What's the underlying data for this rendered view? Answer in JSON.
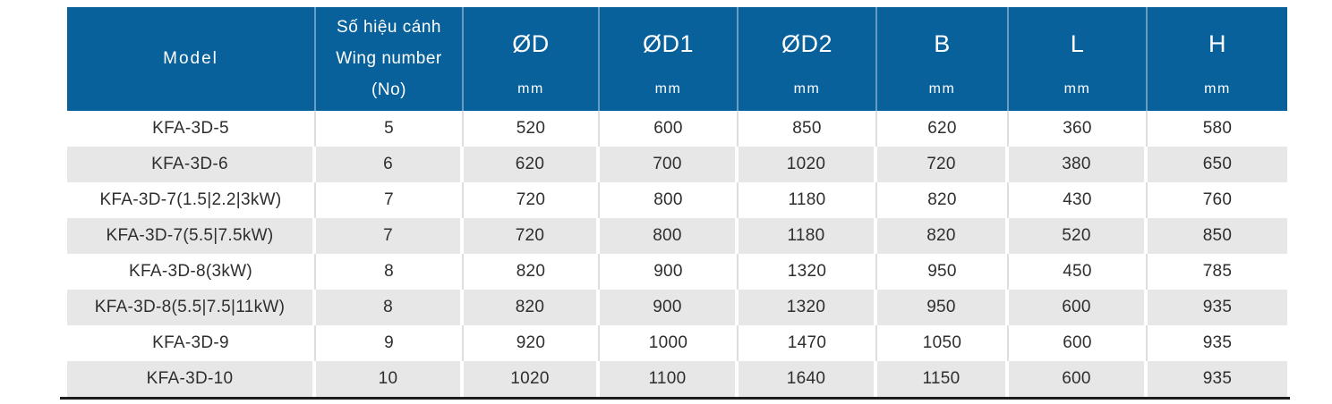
{
  "colors": {
    "header_bg": "#09619c",
    "row_alt_bg": "#e7e7e8",
    "white_row_divider": "#dedede",
    "bottom_rule": "#1d1d1b"
  },
  "table": {
    "header": {
      "model_label": "Model",
      "wing_lines": [
        "Số hiệu cánh",
        "Wing number",
        "(No)"
      ],
      "dim_columns": [
        {
          "label": "ØD",
          "unit": "mm"
        },
        {
          "label": "ØD1",
          "unit": "mm"
        },
        {
          "label": "ØD2",
          "unit": "mm"
        },
        {
          "label": "B",
          "unit": "mm"
        },
        {
          "label": "L",
          "unit": "mm"
        },
        {
          "label": "H",
          "unit": "mm"
        }
      ]
    },
    "rows": [
      {
        "model": "KFA-3D-5",
        "wing": "5",
        "values": [
          "520",
          "600",
          "850",
          "620",
          "360",
          "580"
        ]
      },
      {
        "model": "KFA-3D-6",
        "wing": "6",
        "values": [
          "620",
          "700",
          "1020",
          "720",
          "380",
          "650"
        ]
      },
      {
        "model": "KFA-3D-7(1.5|2.2|3kW)",
        "wing": "7",
        "values": [
          "720",
          "800",
          "1180",
          "820",
          "430",
          "760"
        ]
      },
      {
        "model": "KFA-3D-7(5.5|7.5kW)",
        "wing": "7",
        "values": [
          "720",
          "800",
          "1180",
          "820",
          "520",
          "850"
        ]
      },
      {
        "model": "KFA-3D-8(3kW)",
        "wing": "8",
        "values": [
          "820",
          "900",
          "1320",
          "950",
          "450",
          "785"
        ]
      },
      {
        "model": "KFA-3D-8(5.5|7.5|11kW)",
        "wing": "8",
        "values": [
          "820",
          "900",
          "1320",
          "950",
          "600",
          "935"
        ]
      },
      {
        "model": "KFA-3D-9",
        "wing": "9",
        "values": [
          "920",
          "1000",
          "1470",
          "1050",
          "600",
          "935"
        ]
      },
      {
        "model": "KFA-3D-10",
        "wing": "10",
        "values": [
          "1020",
          "1100",
          "1640",
          "1150",
          "600",
          "935"
        ]
      }
    ]
  }
}
